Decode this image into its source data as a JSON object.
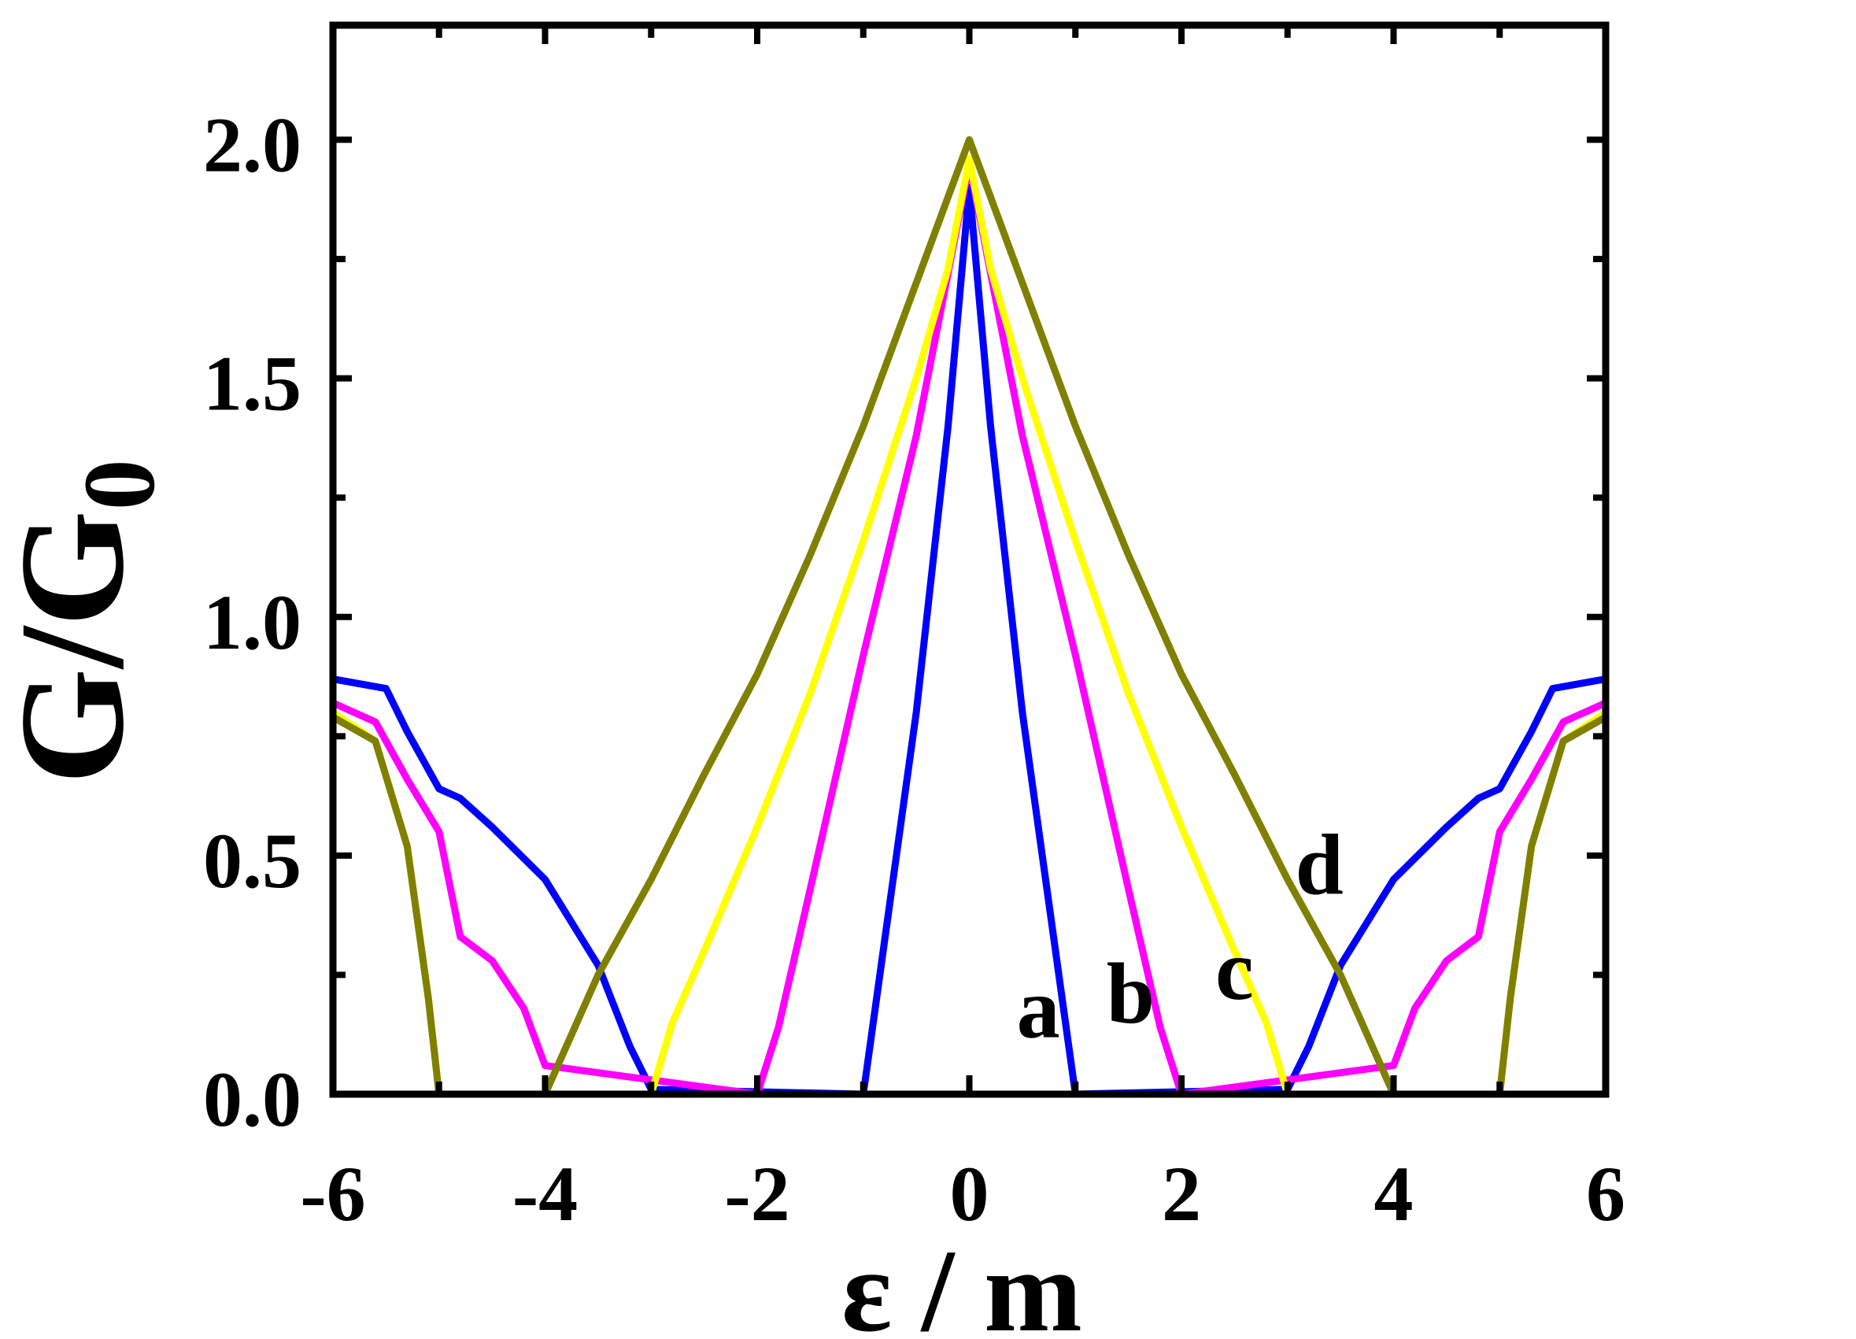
{
  "chart_data": {
    "type": "line",
    "title": "",
    "xlabel": "ε / m",
    "ylabel_main": "G/G",
    "ylabel_sub": "0",
    "xlim": [
      -6,
      6
    ],
    "ylim": [
      0,
      2.24
    ],
    "xticks": [
      -6,
      -4,
      -2,
      0,
      2,
      4,
      6
    ],
    "xtick_labels": [
      "-6",
      "-4",
      "-2",
      "0",
      "2",
      "4",
      "6"
    ],
    "yticks": [
      0.0,
      0.5,
      1.0,
      1.5,
      2.0
    ],
    "ytick_labels": [
      "0.0",
      "0.5",
      "1.0",
      "1.5",
      "2.0"
    ],
    "grid": false,
    "series": [
      {
        "color": "#0000ff",
        "x": [
          -6,
          -5.5,
          -5.3,
          -5.0,
          -4.8,
          -4.5,
          -4.0,
          -3.5,
          -3.2,
          -3.0,
          -1.0,
          -0.5,
          -0.2,
          0,
          0.2,
          0.5,
          1.0,
          3.0,
          3.2,
          3.5,
          4.0,
          4.5,
          4.8,
          5.0,
          5.3,
          5.5,
          6
        ],
        "y": [
          0.87,
          0.85,
          0.76,
          0.64,
          0.62,
          0.56,
          0.45,
          0.27,
          0.1,
          0.01,
          0.0,
          0.8,
          1.4,
          1.9,
          1.4,
          0.8,
          0.0,
          0.01,
          0.1,
          0.27,
          0.45,
          0.56,
          0.62,
          0.64,
          0.76,
          0.85,
          0.87
        ]
      },
      {
        "color": "#ff00ff",
        "x": [
          -6,
          -5.6,
          -5.3,
          -5.0,
          -4.8,
          -4.5,
          -4.2,
          -4.0,
          -2.0,
          -1.8,
          -1.5,
          -1.0,
          -0.5,
          -0.2,
          0,
          0.2,
          0.5,
          1.0,
          1.5,
          1.8,
          2.0,
          4.0,
          4.2,
          4.5,
          4.8,
          5.0,
          5.3,
          5.6,
          6
        ],
        "y": [
          0.82,
          0.78,
          0.66,
          0.55,
          0.33,
          0.28,
          0.18,
          0.06,
          0.0,
          0.14,
          0.43,
          0.92,
          1.38,
          1.72,
          1.95,
          1.72,
          1.38,
          0.92,
          0.43,
          0.14,
          0.0,
          0.06,
          0.18,
          0.28,
          0.33,
          0.55,
          0.66,
          0.78,
          0.82
        ]
      },
      {
        "color": "#ffff00",
        "x": [
          -6,
          -5.6,
          -5.3,
          -5.1,
          -5.0,
          -3.0,
          -2.8,
          -2.5,
          -2.0,
          -1.5,
          -1.0,
          -0.5,
          -0.2,
          0,
          0.2,
          0.5,
          1.0,
          1.5,
          2.0,
          2.5,
          2.8,
          3.0,
          5.0,
          5.1,
          5.3,
          5.6,
          6
        ],
        "y": [
          0.8,
          0.74,
          0.52,
          0.2,
          0.0,
          0.0,
          0.15,
          0.3,
          0.56,
          0.84,
          1.16,
          1.5,
          1.73,
          1.96,
          1.73,
          1.5,
          1.16,
          0.84,
          0.56,
          0.3,
          0.15,
          0.0,
          0.0,
          0.2,
          0.52,
          0.74,
          0.8
        ]
      },
      {
        "color": "#808000",
        "x": [
          -6,
          -5.6,
          -5.3,
          -5.1,
          -5.0,
          -4.0,
          -3.5,
          -3.0,
          -2.5,
          -2.0,
          -1.5,
          -1.0,
          -0.5,
          -0.2,
          0,
          0.2,
          0.5,
          1.0,
          1.5,
          2.0,
          2.5,
          3.0,
          3.5,
          4.0,
          5.0,
          5.1,
          5.3,
          5.6,
          6
        ],
        "y": [
          0.79,
          0.74,
          0.52,
          0.2,
          0.0,
          0.0,
          0.25,
          0.45,
          0.67,
          0.88,
          1.13,
          1.4,
          1.7,
          1.88,
          2.0,
          1.88,
          1.7,
          1.4,
          1.13,
          0.88,
          0.67,
          0.45,
          0.25,
          0.0,
          0.0,
          0.2,
          0.52,
          0.74,
          0.79
        ]
      }
    ],
    "annotations": [
      {
        "text": "a",
        "x": 0.65,
        "y": 0.12
      },
      {
        "text": "b",
        "x": 1.52,
        "y": 0.15
      },
      {
        "text": "c",
        "x": 2.5,
        "y": 0.2
      },
      {
        "text": "d",
        "x": 3.3,
        "y": 0.42
      }
    ]
  }
}
